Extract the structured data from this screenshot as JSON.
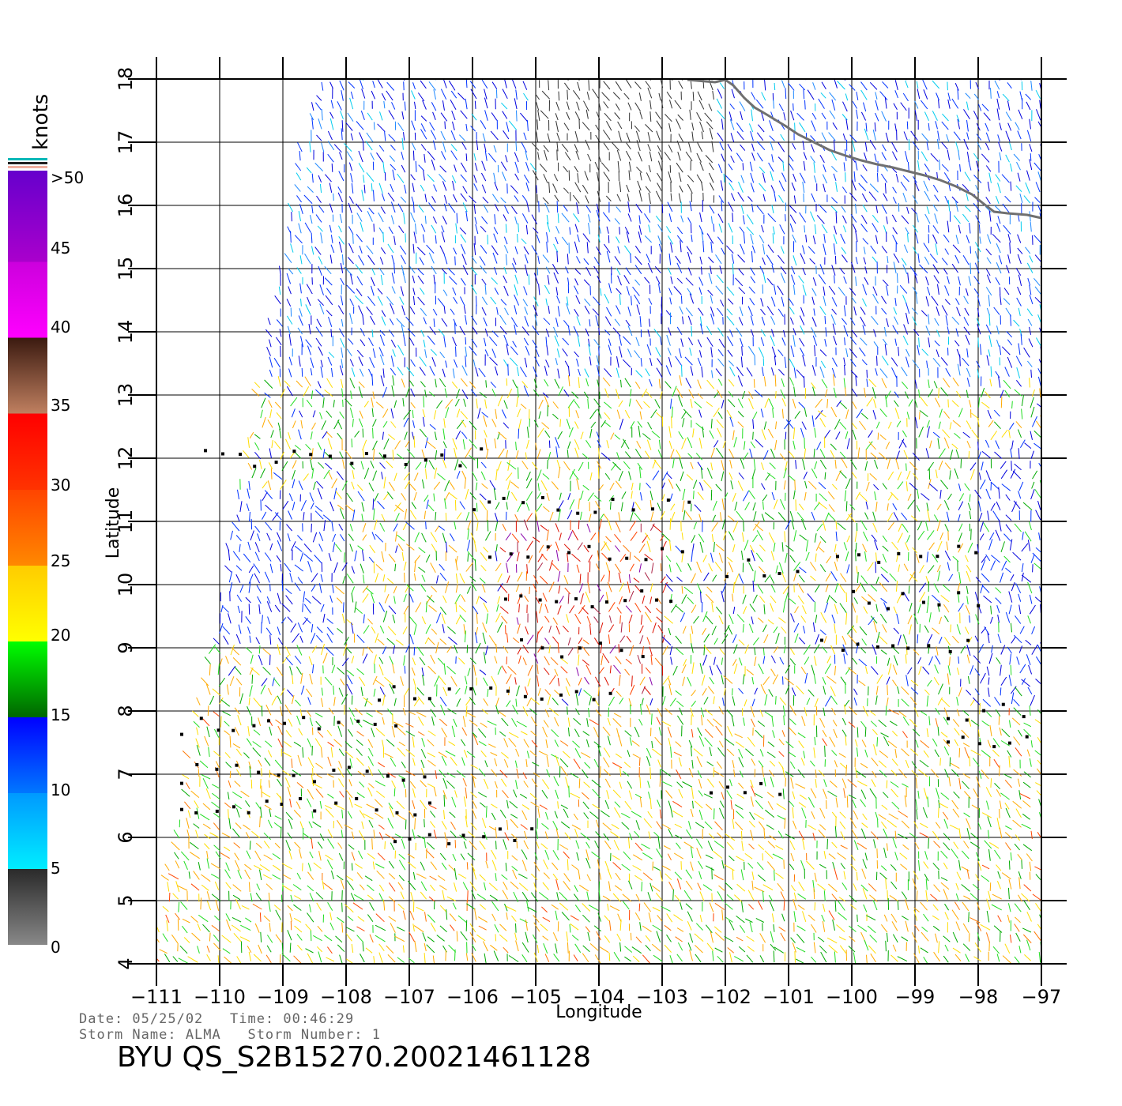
{
  "map": {
    "lon_ticks": [
      "−111",
      "−110",
      "−109",
      "−108",
      "−107",
      "−106",
      "−105",
      "−104",
      "−103",
      "−102",
      "−101",
      "−100",
      "−99",
      "−98",
      "−97"
    ],
    "lat_ticks": [
      "4",
      "5",
      "6",
      "7",
      "8",
      "9",
      "10",
      "11",
      "12",
      "13",
      "14",
      "15",
      "16",
      "17",
      "18"
    ],
    "xlabel": "Longitude",
    "ylabel": "Latitude",
    "lon_range": [
      -111,
      -97
    ],
    "lat_range": [
      4,
      18
    ]
  },
  "colorbar": {
    "unit": "knots",
    "labels": [
      ">50",
      "45",
      "40",
      "35",
      "30",
      "25",
      "20",
      "15",
      "10",
      "5",
      "0"
    ],
    "range": [
      0,
      50
    ],
    "colors": {
      "0-5": [
        "#888888",
        "#2a2a2a"
      ],
      "5-10": [
        "#00eeff",
        "#0099ff"
      ],
      "10-15": [
        "#0077ff",
        "#0000ff"
      ],
      "15-20": [
        "#006600",
        "#00ff00"
      ],
      "20-25": [
        "#ffff00",
        "#ffcc00"
      ],
      "25-30": [
        "#ff8800",
        "#ff4400"
      ],
      "30-35": [
        "#ff3300",
        "#ff0000"
      ],
      "35-40": [
        "#c08060",
        "#3b1a10"
      ],
      "40-45": [
        "#ff00ff",
        "#cc00dd"
      ],
      "45-50": [
        "#aa00cc",
        "#6600cc"
      ]
    }
  },
  "info": {
    "line1": "Date: 05/25/02   Time: 00:46:29",
    "line2": "Storm Name: ALMA   Storm Number: 1",
    "product": "BYU QS_S2B15270.20021461128"
  }
}
